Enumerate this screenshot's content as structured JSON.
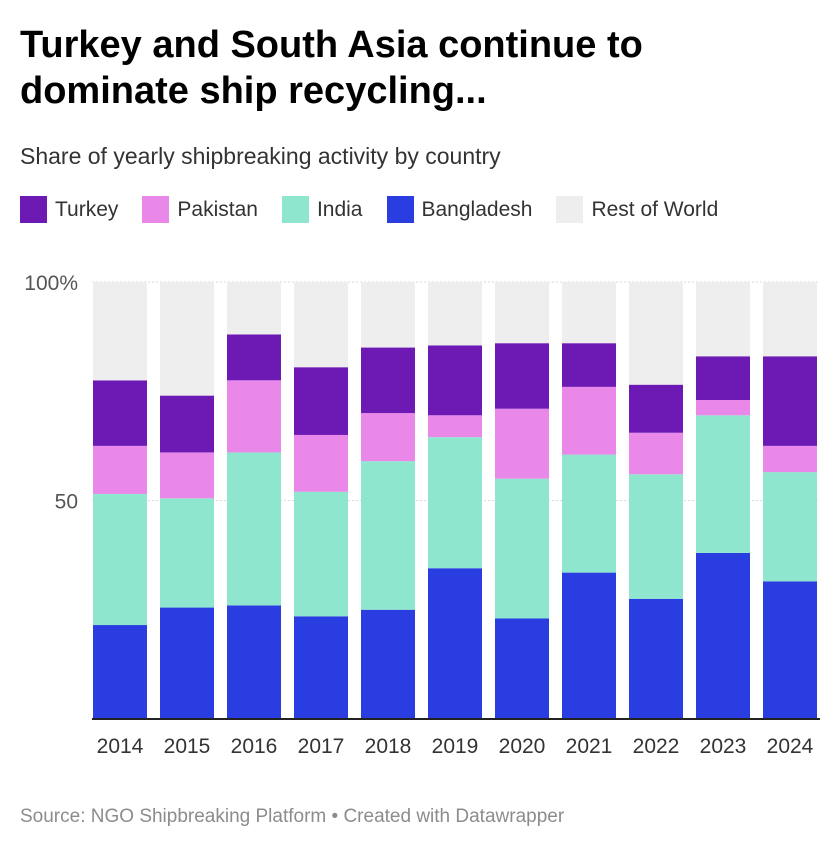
{
  "title": "Turkey and South Asia continue to dominate ship recycling...",
  "subtitle": "Share of yearly shipbreaking activity by country",
  "footer": "Source: NGO Shipbreaking Platform • Created with Datawrapper",
  "legend": [
    {
      "label": "Turkey",
      "color": "#6d1ab5"
    },
    {
      "label": "Pakistan",
      "color": "#ea88ea"
    },
    {
      "label": "India",
      "color": "#8fe6cf"
    },
    {
      "label": "Bangladesh",
      "color": "#2a3de0"
    },
    {
      "label": "Rest of World",
      "color": "#eeeeee"
    }
  ],
  "chart_data": {
    "type": "bar",
    "stacked": true,
    "title": "Turkey and South Asia continue to dominate ship recycling...",
    "subtitle": "Share of yearly shipbreaking activity by country",
    "categories": [
      "2014",
      "2015",
      "2016",
      "2017",
      "2018",
      "2019",
      "2020",
      "2021",
      "2022",
      "2023",
      "2024"
    ],
    "y_tick_labels": [
      "100%",
      "50"
    ],
    "y_ticks": [
      100,
      50
    ],
    "ylim": [
      0,
      100
    ],
    "grid": true,
    "legend_position": "top-left",
    "series": [
      {
        "name": "Bangladesh",
        "color": "#2a3de0",
        "values": [
          21.5,
          25.5,
          26,
          23.5,
          25,
          34.5,
          23,
          33.5,
          27.5,
          38,
          31.5
        ]
      },
      {
        "name": "India",
        "color": "#8fe6cf",
        "values": [
          30,
          25,
          35,
          28.5,
          34,
          30,
          32,
          27,
          28.5,
          31.5,
          25
        ]
      },
      {
        "name": "Pakistan",
        "color": "#ea88ea",
        "values": [
          11,
          10.5,
          16.5,
          13,
          11,
          5,
          16,
          15.5,
          9.5,
          3.5,
          6
        ]
      },
      {
        "name": "Turkey",
        "color": "#6d1ab5",
        "values": [
          15,
          13,
          10.5,
          15.5,
          15,
          16,
          15,
          10,
          11,
          10,
          20.5
        ]
      },
      {
        "name": "Rest of World",
        "color": "#eeeeee",
        "values": [
          22.5,
          26,
          12,
          19.5,
          15,
          14.5,
          14,
          14,
          23.5,
          17,
          17
        ]
      }
    ]
  }
}
